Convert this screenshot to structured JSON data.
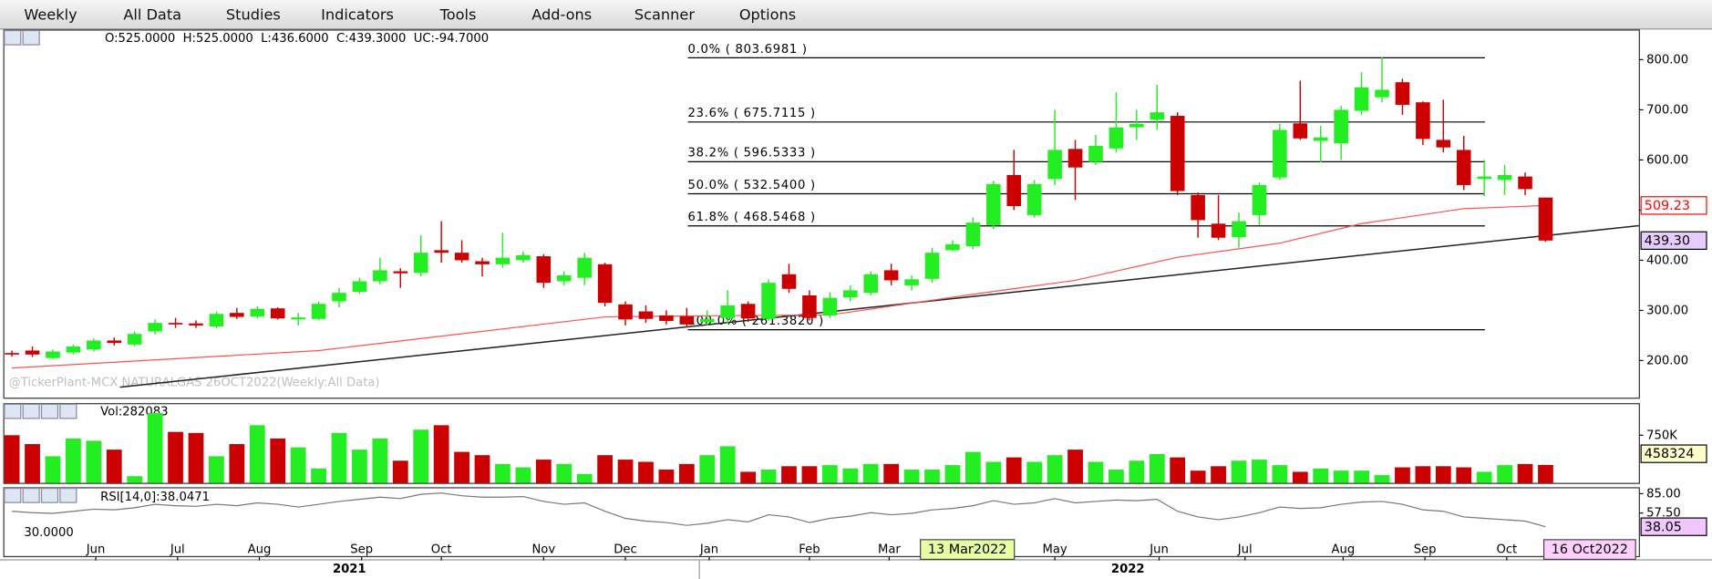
{
  "menu": [
    "Weekly",
    "All Data",
    "Studies",
    "Indicators",
    "Tools",
    "Add-ons",
    "Scanner",
    "Options"
  ],
  "chart_data": [
    {
      "type": "candlestick",
      "ohlc_label": "O:525.0000  H:525.0000  L:436.6000  C:439.3000  UC:-94.7000",
      "watermark": "@TickerPlant-MCX NATURALGAS 26OCT2022(Weekly:All Data)",
      "xlim": [
        -0.37,
        79.56
      ],
      "ylim": [
        126,
        858
      ],
      "yticks": [
        {
          "value": 200,
          "label": "200.00"
        },
        {
          "value": 300,
          "label": "300.00"
        },
        {
          "value": 400,
          "label": "400.00"
        },
        {
          "value": 500,
          "label": "500.00"
        },
        {
          "value": 600,
          "label": "600.00"
        },
        {
          "value": 700,
          "label": "700.00"
        },
        {
          "value": 800,
          "label": "800.00"
        }
      ],
      "up_color": "#22ee22",
      "down_color": "#cc0000",
      "open": [
        215,
        220,
        205,
        216,
        222,
        240,
        232,
        258,
        275,
        274,
        268,
        295,
        288,
        304,
        282,
        283,
        318,
        337,
        358,
        378,
        375,
        420,
        415,
        398,
        392,
        400,
        408,
        358,
        365,
        392,
        312,
        298,
        290,
        288,
        277,
        285,
        313,
        283,
        372,
        330,
        290,
        326,
        335,
        380,
        350,
        363,
        420,
        428,
        470,
        570,
        490,
        562,
        622,
        596,
        623,
        665,
        680,
        688,
        530,
        473,
        446,
        490,
        565,
        673,
        638,
        633,
        698,
        725,
        755,
        715,
        640,
        620,
        562,
        560,
        567,
        525
      ],
      "high": [
        220,
        228,
        222,
        232,
        244,
        246,
        258,
        282,
        285,
        280,
        298,
        305,
        308,
        306,
        295,
        318,
        345,
        365,
        405,
        384,
        450,
        478,
        440,
        405,
        455,
        418,
        412,
        378,
        415,
        395,
        318,
        310,
        300,
        305,
        300,
        340,
        318,
        362,
        393,
        340,
        336,
        350,
        378,
        393,
        370,
        425,
        440,
        485,
        558,
        620,
        560,
        700,
        640,
        650,
        735,
        700,
        750,
        695,
        535,
        530,
        495,
        555,
        672,
        758,
        668,
        708,
        775,
        805,
        762,
        717,
        720,
        648,
        600,
        590,
        575,
        525
      ],
      "low": [
        208,
        207,
        203,
        212,
        218,
        230,
        228,
        252,
        265,
        265,
        264,
        283,
        284,
        282,
        270,
        280,
        306,
        333,
        352,
        345,
        368,
        395,
        395,
        368,
        385,
        395,
        345,
        350,
        350,
        308,
        270,
        275,
        272,
        266,
        270,
        275,
        277,
        279,
        335,
        280,
        285,
        318,
        330,
        350,
        340,
        355,
        418,
        422,
        462,
        500,
        485,
        550,
        520,
        590,
        615,
        640,
        660,
        530,
        445,
        440,
        425,
        470,
        560,
        640,
        595,
        600,
        690,
        715,
        690,
        630,
        615,
        540,
        528,
        530,
        530,
        436.6
      ],
      "close": [
        212,
        212,
        218,
        228,
        240,
        235,
        253,
        275,
        272,
        270,
        293,
        287,
        303,
        284,
        286,
        313,
        335,
        358,
        380,
        374,
        415,
        415,
        400,
        392,
        405,
        410,
        355,
        370,
        405,
        315,
        282,
        283,
        279,
        272,
        283,
        310,
        284,
        355,
        343,
        285,
        325,
        340,
        372,
        360,
        362,
        415,
        432,
        475,
        552,
        508,
        552,
        620,
        585,
        628,
        665,
        672,
        695,
        538,
        480,
        445,
        478,
        550,
        660,
        643,
        645,
        700,
        745,
        740,
        710,
        642,
        625,
        550,
        567,
        570,
        542,
        439.3
      ],
      "ma": {
        "color": "#ff5050",
        "x": [
          0,
          15,
          29,
          33,
          40,
          47,
          52,
          57,
          62,
          66,
          71,
          75
        ],
        "values": [
          185,
          220,
          287,
          289,
          291,
          332,
          360,
          406,
          434,
          473,
          503,
          509.23
        ]
      },
      "trendline": {
        "color": "#222222",
        "x": [
          5.28,
          79.56
        ],
        "values": [
          147,
          469
        ]
      },
      "fib_levels": [
        {
          "value": 803.6981,
          "label": "0.0% ( 803.6981 )"
        },
        {
          "value": 675.7115,
          "label": "23.6% ( 675.7115 )"
        },
        {
          "value": 596.5333,
          "label": "38.2% ( 596.5333 )"
        },
        {
          "value": 532.54,
          "label": "50.0% ( 532.5400 )"
        },
        {
          "value": 468.5468,
          "label": "61.8% ( 468.5468 )"
        },
        {
          "value": 261.382,
          "label": "100.0% ( 261.3820 )"
        }
      ],
      "last_markers": [
        {
          "value": 509.23,
          "color": "#ff0000",
          "fill": "#ffffff"
        },
        {
          "value": 439.3,
          "label": "439.30",
          "color": "#000000",
          "fill": "#e6ccff"
        }
      ]
    },
    {
      "type": "bar",
      "label": "Vol:282083",
      "xlim": [
        -0.37,
        79.56
      ],
      "ylim": [
        0,
        1238000
      ],
      "yticks": [
        {
          "value": 750000,
          "label": "750K"
        }
      ],
      "values": [
        750000,
        610000,
        419000,
        698000,
        663000,
        523000,
        105000,
        1099000,
        802000,
        785000,
        419000,
        610000,
        907000,
        698000,
        558000,
        227000,
        785000,
        523000,
        698000,
        349000,
        837000,
        907000,
        488000,
        436000,
        297000,
        244000,
        366000,
        297000,
        140000,
        436000,
        366000,
        331000,
        209000,
        297000,
        436000,
        576000,
        174000,
        209000,
        262000,
        262000,
        279000,
        227000,
        297000,
        297000,
        209000,
        209000,
        279000,
        488000,
        331000,
        401000,
        331000,
        436000,
        523000,
        331000,
        209000,
        349000,
        453000,
        401000,
        192000,
        262000,
        349000,
        366000,
        279000,
        174000,
        227000,
        192000,
        192000,
        122000,
        244000,
        262000,
        262000,
        244000,
        174000,
        279000,
        297000,
        282083
      ],
      "last_markers": [
        {
          "value": 458324,
          "color": "#000000",
          "fill": "#ffffcc"
        }
      ]
    },
    {
      "type": "line",
      "label": "RSI[14,0]:38.0471",
      "color": "#777777",
      "xlim": [
        -0.37,
        79.56
      ],
      "ylim": [
        -3.6,
        92.6
      ],
      "yticks": [
        {
          "value": 85,
          "label": "85.00"
        },
        {
          "value": 57.5,
          "label": "57.50"
        }
      ],
      "left_ticks": [
        {
          "value": 30,
          "label": "30.0000"
        }
      ],
      "values": [
        60,
        58,
        57,
        60,
        63,
        62,
        65,
        70,
        68,
        67,
        70,
        68,
        72,
        70,
        66,
        70,
        74,
        77,
        80,
        78,
        84,
        86,
        82,
        80,
        80,
        81,
        74,
        70,
        72,
        60,
        50,
        46,
        44,
        40,
        43,
        48,
        45,
        55,
        52,
        44,
        50,
        53,
        58,
        55,
        57,
        62,
        64,
        68,
        75,
        70,
        72,
        78,
        72,
        74,
        76,
        75,
        77,
        60,
        52,
        48,
        52,
        58,
        66,
        64,
        65,
        70,
        73,
        74,
        70,
        62,
        60,
        52,
        50,
        48,
        46,
        38.0471
      ],
      "last_markers": [
        {
          "value": 38.05,
          "color": "#000000",
          "fill": "#f0c8ff"
        }
      ],
      "xticks": [
        {
          "value": 4.1,
          "label": "Jun"
        },
        {
          "value": 8.1,
          "label": "Jul"
        },
        {
          "value": 12.1,
          "label": "Aug"
        },
        {
          "value": 17.1,
          "label": "Sep"
        },
        {
          "value": 21.0,
          "label": "Oct"
        },
        {
          "value": 26.0,
          "label": "Nov"
        },
        {
          "value": 30.0,
          "label": "Dec"
        },
        {
          "value": 34.1,
          "label": "Jan"
        },
        {
          "value": 39.0,
          "label": "Feb"
        },
        {
          "value": 42.9,
          "label": "Mar"
        },
        {
          "value": 51.0,
          "label": "May"
        },
        {
          "value": 56.1,
          "label": "Jun"
        },
        {
          "value": 60.3,
          "label": "Jul"
        },
        {
          "value": 65.1,
          "label": "Aug"
        },
        {
          "value": 69.1,
          "label": "Sep"
        },
        {
          "value": 73.1,
          "label": "Oct"
        }
      ],
      "years": [
        "2021",
        "2022"
      ],
      "date_markers": [
        "13 Mar2022",
        "16 Oct2022"
      ]
    }
  ]
}
